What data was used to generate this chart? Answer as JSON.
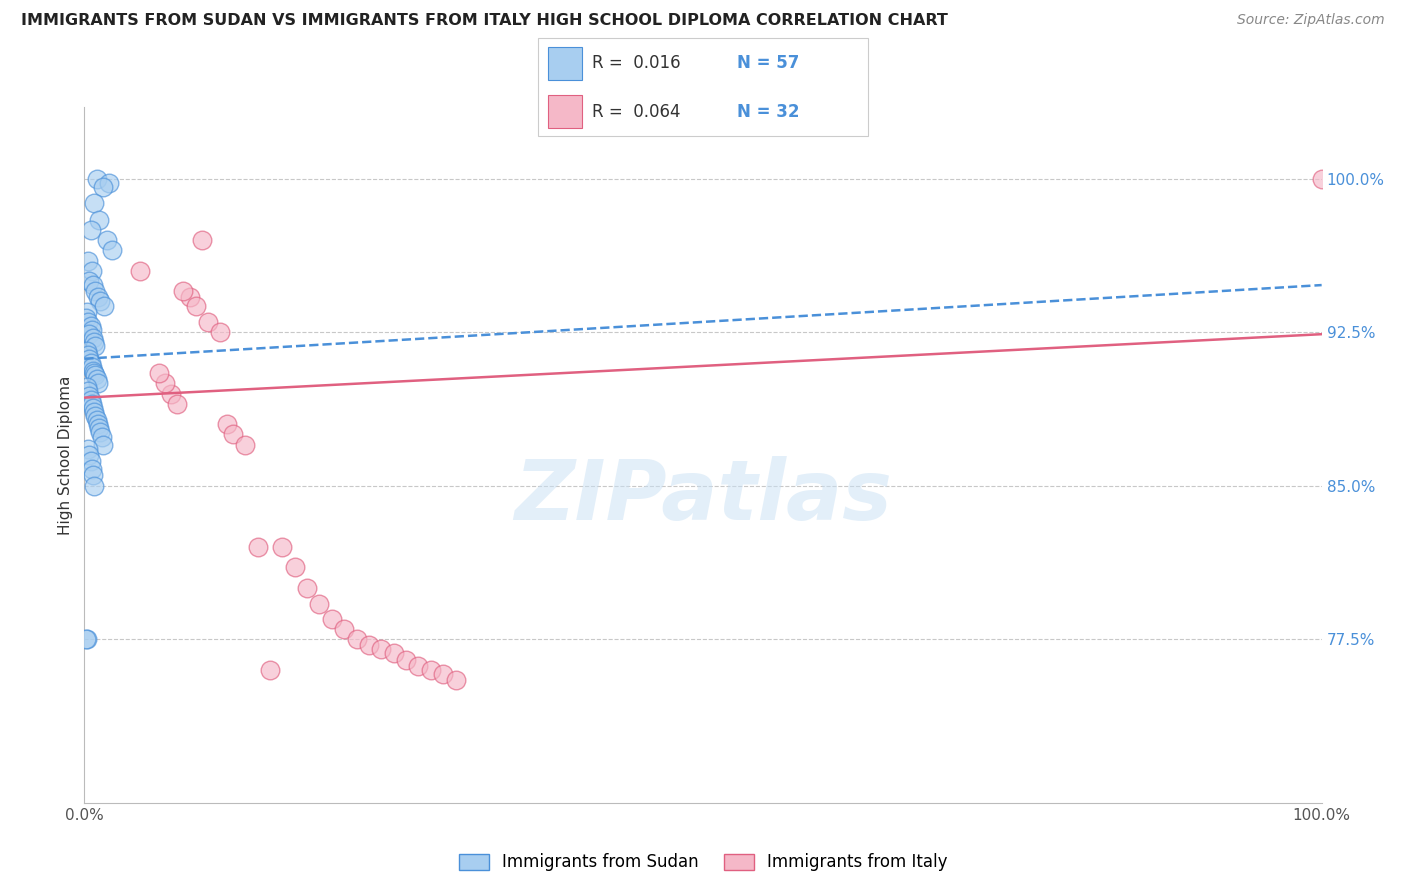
{
  "title": "IMMIGRANTS FROM SUDAN VS IMMIGRANTS FROM ITALY HIGH SCHOOL DIPLOMA CORRELATION CHART",
  "source": "Source: ZipAtlas.com",
  "ylabel": "High School Diploma",
  "xlim": [
    0.0,
    1.0
  ],
  "ylim": [
    0.695,
    1.035
  ],
  "yticks": [
    0.775,
    0.85,
    0.925,
    1.0
  ],
  "ytick_labels": [
    "77.5%",
    "85.0%",
    "92.5%",
    "100.0%"
  ],
  "xticks": [
    0.0,
    0.2,
    0.4,
    0.6,
    0.8,
    1.0
  ],
  "xtick_labels": [
    "0.0%",
    "",
    "",
    "",
    "",
    "100.0%"
  ],
  "blue_color": "#A8CEF0",
  "pink_color": "#F5B8C8",
  "blue_line_color": "#4A90D9",
  "pink_line_color": "#E06080",
  "grid_color": "#C8C8C8",
  "blue_scatter_x": [
    0.01,
    0.02,
    0.015,
    0.008,
    0.012,
    0.005,
    0.018,
    0.022,
    0.003,
    0.006,
    0.004,
    0.007,
    0.009,
    0.011,
    0.013,
    0.016,
    0.002,
    0.001,
    0.003,
    0.005,
    0.006,
    0.004,
    0.007,
    0.008,
    0.009,
    0.002,
    0.003,
    0.004,
    0.005,
    0.006,
    0.007,
    0.008,
    0.009,
    0.01,
    0.011,
    0.002,
    0.003,
    0.004,
    0.005,
    0.006,
    0.007,
    0.008,
    0.009,
    0.01,
    0.011,
    0.012,
    0.013,
    0.014,
    0.015,
    0.003,
    0.004,
    0.005,
    0.006,
    0.007,
    0.008,
    0.002,
    0.001
  ],
  "blue_scatter_y": [
    1.0,
    0.998,
    0.996,
    0.988,
    0.98,
    0.975,
    0.97,
    0.965,
    0.96,
    0.955,
    0.95,
    0.948,
    0.945,
    0.942,
    0.94,
    0.938,
    0.935,
    0.932,
    0.93,
    0.928,
    0.926,
    0.924,
    0.922,
    0.92,
    0.918,
    0.916,
    0.914,
    0.912,
    0.91,
    0.908,
    0.906,
    0.905,
    0.904,
    0.902,
    0.9,
    0.898,
    0.896,
    0.894,
    0.892,
    0.89,
    0.888,
    0.886,
    0.884,
    0.882,
    0.88,
    0.878,
    0.876,
    0.874,
    0.87,
    0.868,
    0.865,
    0.862,
    0.858,
    0.855,
    0.85,
    0.775,
    0.775
  ],
  "pink_scatter_x": [
    0.045,
    0.095,
    0.085,
    0.09,
    0.1,
    0.11,
    0.08,
    0.07,
    0.065,
    0.075,
    0.115,
    0.12,
    0.13,
    0.06,
    0.14,
    0.15,
    0.16,
    0.17,
    0.18,
    0.19,
    0.2,
    0.21,
    0.22,
    0.23,
    0.24,
    0.25,
    0.26,
    0.27,
    0.28,
    0.29,
    0.3,
    1.0
  ],
  "pink_scatter_y": [
    0.955,
    0.97,
    0.942,
    0.938,
    0.93,
    0.925,
    0.945,
    0.895,
    0.9,
    0.89,
    0.88,
    0.875,
    0.87,
    0.905,
    0.82,
    0.76,
    0.82,
    0.81,
    0.8,
    0.792,
    0.785,
    0.78,
    0.775,
    0.772,
    0.77,
    0.768,
    0.765,
    0.762,
    0.76,
    0.758,
    0.755,
    1.0
  ],
  "blue_trend_x": [
    0.0,
    1.0
  ],
  "blue_trend_y": [
    0.912,
    0.948
  ],
  "pink_trend_x": [
    0.0,
    1.0
  ],
  "pink_trend_y": [
    0.893,
    0.924
  ],
  "legend_R1": "R =  0.016",
  "legend_N1": "N = 57",
  "legend_R2": "R =  0.064",
  "legend_N2": "N = 32",
  "legend_label1": "Immigrants from Sudan",
  "legend_label2": "Immigrants from Italy"
}
